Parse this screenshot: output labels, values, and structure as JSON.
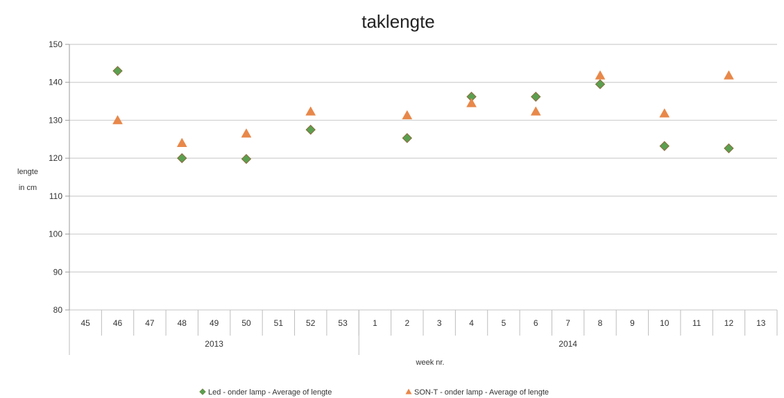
{
  "chart_data": {
    "type": "scatter",
    "title": "taklengte",
    "ylabel": [
      "lengte",
      "in cm"
    ],
    "xlabel": "week nr.",
    "ylim": [
      80,
      150
    ],
    "yticks": [
      80,
      90,
      100,
      110,
      120,
      130,
      140,
      150
    ],
    "grid": true,
    "weeks": [
      "45",
      "46",
      "47",
      "48",
      "49",
      "50",
      "51",
      "52",
      "53",
      "1",
      "2",
      "3",
      "4",
      "5",
      "6",
      "7",
      "8",
      "9",
      "10",
      "11",
      "12",
      "13"
    ],
    "years": [
      {
        "label": "2013",
        "from": 0,
        "to": 8
      },
      {
        "label": "2014",
        "from": 9,
        "to": 21
      }
    ],
    "legend_position": "bottom",
    "series": [
      {
        "name": "Led - onder lamp - Average of lengte",
        "marker": "diamond",
        "color": "#5aa050",
        "stroke": "#8a6a3a",
        "points": [
          {
            "week": "46",
            "value": 143
          },
          {
            "week": "48",
            "value": 120
          },
          {
            "week": "50",
            "value": 119.8
          },
          {
            "week": "52",
            "value": 127.5
          },
          {
            "week": "2",
            "value": 125.3
          },
          {
            "week": "4",
            "value": 136.2
          },
          {
            "week": "6",
            "value": 136.2
          },
          {
            "week": "8",
            "value": 139.5
          },
          {
            "week": "10",
            "value": 123.2
          },
          {
            "week": "12",
            "value": 122.6
          }
        ]
      },
      {
        "name": "SON-T - onder lamp - Average of lengte",
        "marker": "triangle",
        "color": "#e8884a",
        "stroke": "#e8884a",
        "points": [
          {
            "week": "46",
            "value": 130
          },
          {
            "week": "48",
            "value": 124
          },
          {
            "week": "50",
            "value": 126.5
          },
          {
            "week": "52",
            "value": 132.3
          },
          {
            "week": "2",
            "value": 131.3
          },
          {
            "week": "4",
            "value": 134.5
          },
          {
            "week": "6",
            "value": 132.3
          },
          {
            "week": "8",
            "value": 141.8
          },
          {
            "week": "10",
            "value": 131.8
          },
          {
            "week": "12",
            "value": 141.8
          }
        ]
      }
    ]
  }
}
